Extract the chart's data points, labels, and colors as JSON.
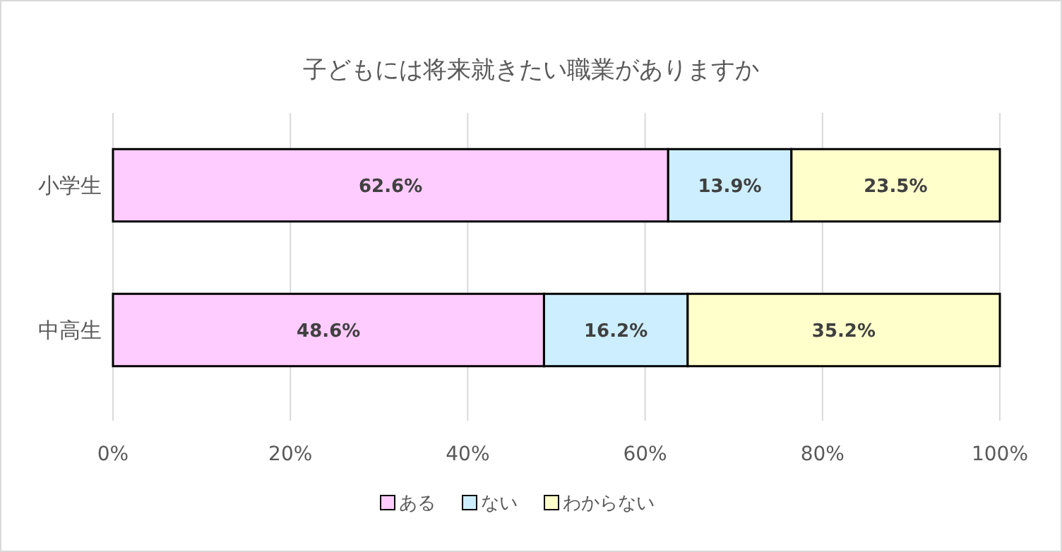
{
  "chart_data": {
    "type": "bar",
    "orientation": "horizontal",
    "stacked": true,
    "title": "子どもには将来就きたい職業がありますか",
    "categories": [
      "小学生",
      "中高生"
    ],
    "series": [
      {
        "name": "ある",
        "color": "#ffccff",
        "values": [
          62.6,
          48.6
        ]
      },
      {
        "name": "ない",
        "color": "#cceeff",
        "values": [
          13.9,
          16.2
        ]
      },
      {
        "name": "わからない",
        "color": "#ffffcc",
        "values": [
          23.5,
          35.2
        ]
      }
    ],
    "xlim": [
      0,
      100
    ],
    "xticks": [
      {
        "value": 0,
        "label": "0%"
      },
      {
        "value": 20,
        "label": "20%"
      },
      {
        "value": 40,
        "label": "40%"
      },
      {
        "value": 60,
        "label": "60%"
      },
      {
        "value": 80,
        "label": "80%"
      },
      {
        "value": 100,
        "label": "100%"
      }
    ],
    "value_labels": [
      [
        "62.6%",
        "48.6%"
      ],
      [
        "13.9%",
        "16.2%"
      ],
      [
        "23.5%",
        "35.2%"
      ]
    ],
    "grid": "x",
    "legend": "bottom"
  }
}
